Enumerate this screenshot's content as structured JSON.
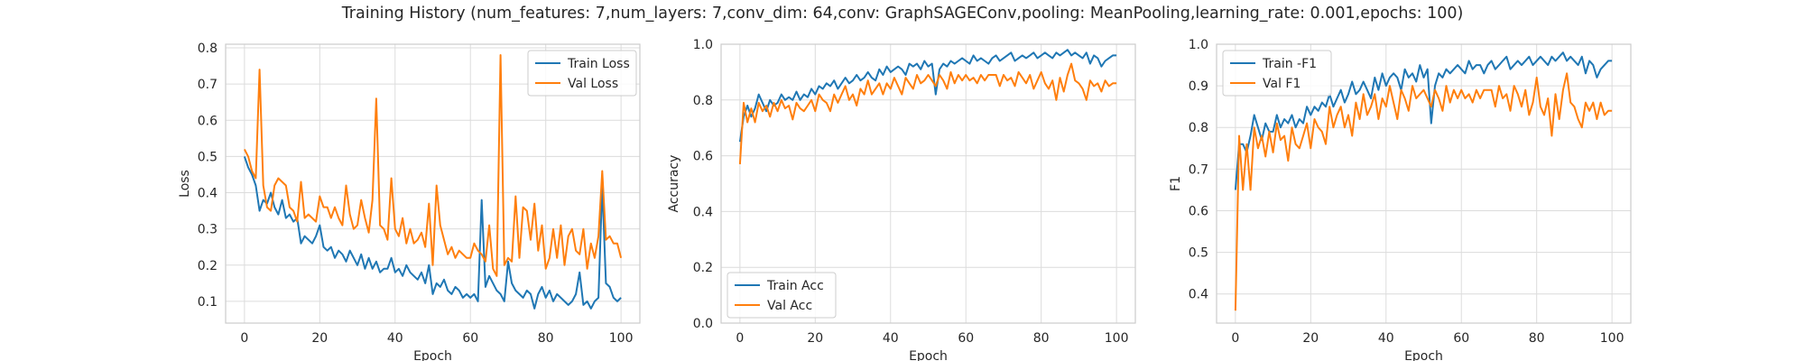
{
  "suptitle": "Training History (num_features: 7,num_layers: 7,conv_dim: 64,conv: GraphSAGEConv,pooling: MeanPooling,learning_rate: 0.001,epochs: 100)",
  "colors": {
    "blue": "#1f77b4",
    "orange": "#ff7f0e",
    "grid": "#dcdcdc",
    "frame": "#cccccc"
  },
  "chart_data": [
    {
      "type": "line",
      "xlabel": "Epoch",
      "ylabel": "Loss",
      "xlim": [
        -5,
        105
      ],
      "ylim": [
        0.04,
        0.81
      ],
      "xticks": [
        0,
        20,
        40,
        60,
        80,
        100
      ],
      "yticks": [
        0.1,
        0.2,
        0.3,
        0.4,
        0.5,
        0.6,
        0.7,
        0.8
      ],
      "ytick_labels": [
        "0.1",
        "0.2",
        "0.3",
        "0.4",
        "0.5",
        "0.6",
        "0.7",
        "0.8"
      ],
      "legend_loc": "upper right",
      "x": [
        0,
        1,
        2,
        3,
        4,
        5,
        6,
        7,
        8,
        9,
        10,
        11,
        12,
        13,
        14,
        15,
        16,
        17,
        18,
        19,
        20,
        21,
        22,
        23,
        24,
        25,
        26,
        27,
        28,
        29,
        30,
        31,
        32,
        33,
        34,
        35,
        36,
        37,
        38,
        39,
        40,
        41,
        42,
        43,
        44,
        45,
        46,
        47,
        48,
        49,
        50,
        51,
        52,
        53,
        54,
        55,
        56,
        57,
        58,
        59,
        60,
        61,
        62,
        63,
        64,
        65,
        66,
        67,
        68,
        69,
        70,
        71,
        72,
        73,
        74,
        75,
        76,
        77,
        78,
        79,
        80,
        81,
        82,
        83,
        84,
        85,
        86,
        87,
        88,
        89,
        90,
        91,
        92,
        93,
        94,
        95,
        96,
        97,
        98,
        99,
        100
      ],
      "series": [
        {
          "name": "Train Loss",
          "color": "#1f77b4",
          "values": [
            0.5,
            0.47,
            0.45,
            0.42,
            0.35,
            0.38,
            0.37,
            0.4,
            0.36,
            0.34,
            0.38,
            0.33,
            0.34,
            0.32,
            0.33,
            0.26,
            0.28,
            0.27,
            0.26,
            0.28,
            0.31,
            0.25,
            0.24,
            0.25,
            0.22,
            0.24,
            0.23,
            0.21,
            0.24,
            0.22,
            0.2,
            0.23,
            0.19,
            0.22,
            0.19,
            0.21,
            0.18,
            0.19,
            0.19,
            0.22,
            0.18,
            0.19,
            0.17,
            0.2,
            0.18,
            0.17,
            0.16,
            0.18,
            0.15,
            0.2,
            0.12,
            0.15,
            0.14,
            0.16,
            0.13,
            0.12,
            0.14,
            0.13,
            0.11,
            0.12,
            0.11,
            0.12,
            0.1,
            0.38,
            0.14,
            0.17,
            0.15,
            0.13,
            0.12,
            0.1,
            0.21,
            0.15,
            0.13,
            0.12,
            0.11,
            0.13,
            0.12,
            0.08,
            0.12,
            0.14,
            0.11,
            0.13,
            0.1,
            0.12,
            0.11,
            0.1,
            0.09,
            0.1,
            0.12,
            0.18,
            0.09,
            0.1,
            0.08,
            0.1,
            0.11,
            0.42,
            0.15,
            0.14,
            0.11,
            0.1,
            0.11
          ]
        },
        {
          "name": "Val Loss",
          "color": "#ff7f0e",
          "values": [
            0.52,
            0.5,
            0.46,
            0.44,
            0.74,
            0.42,
            0.36,
            0.35,
            0.42,
            0.44,
            0.43,
            0.42,
            0.36,
            0.35,
            0.32,
            0.43,
            0.33,
            0.34,
            0.33,
            0.32,
            0.39,
            0.36,
            0.36,
            0.33,
            0.36,
            0.33,
            0.31,
            0.42,
            0.34,
            0.3,
            0.31,
            0.38,
            0.33,
            0.29,
            0.38,
            0.66,
            0.31,
            0.3,
            0.27,
            0.44,
            0.3,
            0.28,
            0.33,
            0.26,
            0.3,
            0.26,
            0.27,
            0.29,
            0.25,
            0.37,
            0.2,
            0.42,
            0.31,
            0.27,
            0.23,
            0.25,
            0.22,
            0.24,
            0.23,
            0.22,
            0.22,
            0.26,
            0.24,
            0.23,
            0.21,
            0.31,
            0.19,
            0.17,
            0.78,
            0.2,
            0.22,
            0.21,
            0.39,
            0.22,
            0.36,
            0.35,
            0.27,
            0.37,
            0.24,
            0.31,
            0.19,
            0.22,
            0.3,
            0.22,
            0.31,
            0.2,
            0.28,
            0.3,
            0.24,
            0.23,
            0.3,
            0.19,
            0.26,
            0.22,
            0.28,
            0.46,
            0.27,
            0.28,
            0.26,
            0.26,
            0.22
          ]
        }
      ]
    },
    {
      "type": "line",
      "xlabel": "Epoch",
      "ylabel": "Accuracy",
      "xlim": [
        -5,
        105
      ],
      "ylim": [
        0.0,
        1.0
      ],
      "xticks": [
        0,
        20,
        40,
        60,
        80,
        100
      ],
      "yticks": [
        0.0,
        0.2,
        0.4,
        0.6,
        0.8,
        1.0
      ],
      "ytick_labels": [
        "0.0",
        "0.2",
        "0.4",
        "0.6",
        "0.8",
        "1.0"
      ],
      "legend_loc": "lower left",
      "x": [
        0,
        1,
        2,
        3,
        4,
        5,
        6,
        7,
        8,
        9,
        10,
        11,
        12,
        13,
        14,
        15,
        16,
        17,
        18,
        19,
        20,
        21,
        22,
        23,
        24,
        25,
        26,
        27,
        28,
        29,
        30,
        31,
        32,
        33,
        34,
        35,
        36,
        37,
        38,
        39,
        40,
        41,
        42,
        43,
        44,
        45,
        46,
        47,
        48,
        49,
        50,
        51,
        52,
        53,
        54,
        55,
        56,
        57,
        58,
        59,
        60,
        61,
        62,
        63,
        64,
        65,
        66,
        67,
        68,
        69,
        70,
        71,
        72,
        73,
        74,
        75,
        76,
        77,
        78,
        79,
        80,
        81,
        82,
        83,
        84,
        85,
        86,
        87,
        88,
        89,
        90,
        91,
        92,
        93,
        94,
        95,
        96,
        97,
        98,
        99,
        100
      ],
      "series": [
        {
          "name": "Train Acc",
          "color": "#1f77b4",
          "values": [
            0.65,
            0.74,
            0.78,
            0.74,
            0.77,
            0.82,
            0.79,
            0.76,
            0.8,
            0.78,
            0.79,
            0.82,
            0.8,
            0.81,
            0.8,
            0.83,
            0.8,
            0.82,
            0.81,
            0.84,
            0.82,
            0.85,
            0.84,
            0.86,
            0.85,
            0.87,
            0.84,
            0.86,
            0.88,
            0.86,
            0.87,
            0.89,
            0.87,
            0.88,
            0.9,
            0.88,
            0.87,
            0.91,
            0.89,
            0.92,
            0.9,
            0.91,
            0.92,
            0.91,
            0.89,
            0.93,
            0.92,
            0.93,
            0.91,
            0.94,
            0.92,
            0.93,
            0.82,
            0.91,
            0.93,
            0.92,
            0.94,
            0.93,
            0.94,
            0.95,
            0.94,
            0.93,
            0.96,
            0.94,
            0.95,
            0.94,
            0.93,
            0.95,
            0.96,
            0.94,
            0.95,
            0.96,
            0.97,
            0.94,
            0.95,
            0.96,
            0.95,
            0.96,
            0.97,
            0.95,
            0.96,
            0.97,
            0.96,
            0.95,
            0.97,
            0.96,
            0.97,
            0.98,
            0.96,
            0.97,
            0.96,
            0.95,
            0.97,
            0.93,
            0.96,
            0.95,
            0.92,
            0.94,
            0.95,
            0.96,
            0.96
          ]
        },
        {
          "name": "Val Acc",
          "color": "#ff7f0e",
          "values": [
            0.57,
            0.79,
            0.72,
            0.77,
            0.72,
            0.79,
            0.76,
            0.78,
            0.74,
            0.79,
            0.76,
            0.8,
            0.77,
            0.78,
            0.73,
            0.79,
            0.77,
            0.76,
            0.78,
            0.8,
            0.76,
            0.82,
            0.8,
            0.79,
            0.76,
            0.82,
            0.79,
            0.82,
            0.85,
            0.8,
            0.82,
            0.78,
            0.84,
            0.82,
            0.87,
            0.82,
            0.84,
            0.86,
            0.82,
            0.86,
            0.84,
            0.88,
            0.85,
            0.82,
            0.88,
            0.86,
            0.84,
            0.89,
            0.86,
            0.87,
            0.89,
            0.87,
            0.85,
            0.89,
            0.87,
            0.84,
            0.9,
            0.86,
            0.89,
            0.87,
            0.89,
            0.87,
            0.88,
            0.86,
            0.89,
            0.87,
            0.89,
            0.89,
            0.89,
            0.85,
            0.89,
            0.87,
            0.88,
            0.85,
            0.9,
            0.88,
            0.86,
            0.89,
            0.84,
            0.87,
            0.9,
            0.86,
            0.84,
            0.87,
            0.8,
            0.88,
            0.83,
            0.89,
            0.93,
            0.87,
            0.86,
            0.84,
            0.8,
            0.87,
            0.85,
            0.86,
            0.83,
            0.87,
            0.85,
            0.86,
            0.86
          ]
        }
      ]
    },
    {
      "type": "line",
      "xlabel": "Epoch",
      "ylabel": "F1",
      "xlim": [
        -5,
        105
      ],
      "ylim": [
        0.33,
        1.0
      ],
      "xticks": [
        0,
        20,
        40,
        60,
        80,
        100
      ],
      "yticks": [
        0.4,
        0.5,
        0.6,
        0.7,
        0.8,
        0.9,
        1.0
      ],
      "ytick_labels": [
        "0.4",
        "0.5",
        "0.6",
        "0.7",
        "0.8",
        "0.9",
        "1.0"
      ],
      "legend_loc": "upper left",
      "x": [
        0,
        1,
        2,
        3,
        4,
        5,
        6,
        7,
        8,
        9,
        10,
        11,
        12,
        13,
        14,
        15,
        16,
        17,
        18,
        19,
        20,
        21,
        22,
        23,
        24,
        25,
        26,
        27,
        28,
        29,
        30,
        31,
        32,
        33,
        34,
        35,
        36,
        37,
        38,
        39,
        40,
        41,
        42,
        43,
        44,
        45,
        46,
        47,
        48,
        49,
        50,
        51,
        52,
        53,
        54,
        55,
        56,
        57,
        58,
        59,
        60,
        61,
        62,
        63,
        64,
        65,
        66,
        67,
        68,
        69,
        70,
        71,
        72,
        73,
        74,
        75,
        76,
        77,
        78,
        79,
        80,
        81,
        82,
        83,
        84,
        85,
        86,
        87,
        88,
        89,
        90,
        91,
        92,
        93,
        94,
        95,
        96,
        97,
        98,
        99,
        100
      ],
      "series": [
        {
          "name": "Train -F1",
          "color": "#1f77b4",
          "values": [
            0.65,
            0.76,
            0.76,
            0.74,
            0.78,
            0.83,
            0.8,
            0.77,
            0.81,
            0.79,
            0.79,
            0.83,
            0.8,
            0.82,
            0.81,
            0.83,
            0.8,
            0.82,
            0.81,
            0.85,
            0.83,
            0.85,
            0.84,
            0.86,
            0.85,
            0.88,
            0.85,
            0.87,
            0.89,
            0.86,
            0.88,
            0.91,
            0.88,
            0.89,
            0.91,
            0.89,
            0.87,
            0.92,
            0.89,
            0.93,
            0.9,
            0.92,
            0.93,
            0.92,
            0.89,
            0.94,
            0.92,
            0.93,
            0.91,
            0.95,
            0.92,
            0.94,
            0.81,
            0.9,
            0.93,
            0.92,
            0.94,
            0.93,
            0.94,
            0.95,
            0.94,
            0.93,
            0.96,
            0.94,
            0.95,
            0.95,
            0.93,
            0.95,
            0.96,
            0.94,
            0.95,
            0.96,
            0.97,
            0.94,
            0.95,
            0.96,
            0.95,
            0.96,
            0.97,
            0.95,
            0.96,
            0.97,
            0.96,
            0.95,
            0.97,
            0.96,
            0.97,
            0.98,
            0.96,
            0.97,
            0.96,
            0.95,
            0.97,
            0.93,
            0.96,
            0.95,
            0.92,
            0.94,
            0.95,
            0.96,
            0.96
          ]
        },
        {
          "name": "Val F1",
          "color": "#ff7f0e",
          "values": [
            0.36,
            0.78,
            0.65,
            0.76,
            0.65,
            0.8,
            0.75,
            0.78,
            0.73,
            0.79,
            0.74,
            0.81,
            0.77,
            0.78,
            0.72,
            0.8,
            0.76,
            0.75,
            0.78,
            0.81,
            0.75,
            0.82,
            0.8,
            0.79,
            0.76,
            0.85,
            0.8,
            0.83,
            0.85,
            0.8,
            0.83,
            0.78,
            0.86,
            0.82,
            0.88,
            0.83,
            0.85,
            0.88,
            0.82,
            0.87,
            0.85,
            0.9,
            0.86,
            0.82,
            0.89,
            0.87,
            0.84,
            0.9,
            0.87,
            0.88,
            0.89,
            0.87,
            0.85,
            0.89,
            0.87,
            0.84,
            0.9,
            0.86,
            0.89,
            0.87,
            0.89,
            0.87,
            0.88,
            0.86,
            0.89,
            0.87,
            0.89,
            0.89,
            0.89,
            0.85,
            0.9,
            0.87,
            0.88,
            0.84,
            0.9,
            0.88,
            0.85,
            0.89,
            0.83,
            0.86,
            0.92,
            0.85,
            0.83,
            0.87,
            0.78,
            0.88,
            0.82,
            0.89,
            0.93,
            0.86,
            0.85,
            0.82,
            0.8,
            0.86,
            0.84,
            0.86,
            0.82,
            0.86,
            0.83,
            0.84,
            0.84
          ]
        }
      ]
    }
  ]
}
